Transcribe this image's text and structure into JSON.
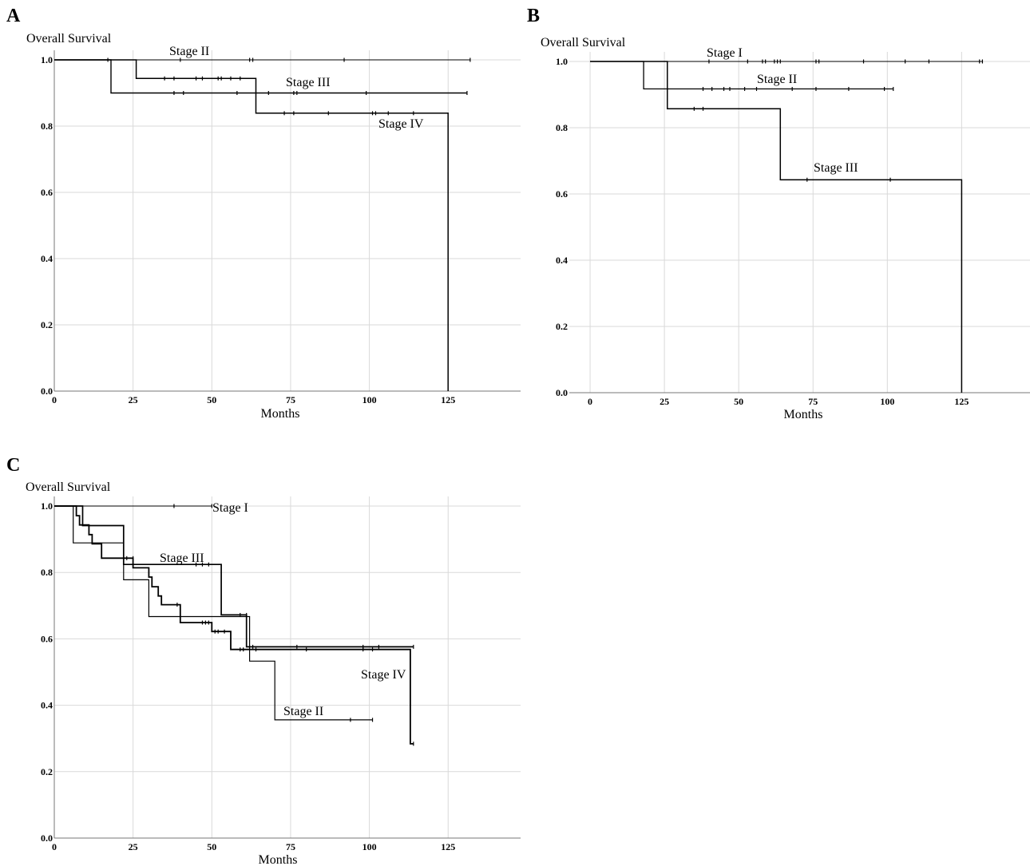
{
  "figure": {
    "background": "#ffffff",
    "grid_color": "#d9d9d9",
    "axis_color": "#777777",
    "line_color": "#000000"
  },
  "chart_data": [
    {
      "panel": "A",
      "type": "line",
      "subtype": "kaplan-meier",
      "ylabel": "Overall Survival",
      "xlabel": "Months",
      "xlim": [
        0,
        148
      ],
      "ylim": [
        0,
        1
      ],
      "x_ticks": [
        "0",
        "25",
        "50",
        "75",
        "100",
        "125"
      ],
      "y_ticks": [
        "0.0",
        "0.2",
        "0.4",
        "0.6",
        "0.8",
        "1.0"
      ],
      "grid": true,
      "series": [
        {
          "name": "Stage II",
          "steps": [
            [
              0,
              1.0
            ],
            [
              132,
              1.0
            ]
          ],
          "censored": [
            [
              40,
              1.0
            ],
            [
              62,
              1.0
            ],
            [
              63,
              1.0
            ],
            [
              92,
              1.0
            ],
            [
              132,
              1.0
            ]
          ]
        },
        {
          "name": "Stage III",
          "steps": [
            [
              0,
              1.0
            ],
            [
              18,
              0.9
            ],
            [
              131,
              0.9
            ]
          ],
          "censored": [
            [
              17,
              1.0
            ],
            [
              38,
              0.9
            ],
            [
              41,
              0.9
            ],
            [
              58,
              0.9
            ],
            [
              68,
              0.9
            ],
            [
              76,
              0.9
            ],
            [
              77,
              0.9
            ],
            [
              99,
              0.9
            ],
            [
              131,
              0.9
            ]
          ]
        },
        {
          "name": "Stage IV",
          "steps": [
            [
              0,
              1.0
            ],
            [
              26,
              0.944
            ],
            [
              64,
              0.839
            ],
            [
              125,
              0.0
            ]
          ],
          "censored": [
            [
              35,
              0.944
            ],
            [
              38,
              0.944
            ],
            [
              45,
              0.944
            ],
            [
              47,
              0.944
            ],
            [
              52,
              0.944
            ],
            [
              53,
              0.944
            ],
            [
              56,
              0.944
            ],
            [
              59,
              0.944
            ],
            [
              73,
              0.839
            ],
            [
              76,
              0.839
            ],
            [
              87,
              0.839
            ],
            [
              101,
              0.839
            ],
            [
              102,
              0.839
            ],
            [
              106,
              0.839
            ],
            [
              114,
              0.839
            ]
          ]
        }
      ],
      "labels": [
        "Stage II",
        "Stage III",
        "Stage IV"
      ]
    },
    {
      "panel": "B",
      "type": "line",
      "subtype": "kaplan-meier",
      "ylabel": "Overall Survival",
      "xlabel": "Months",
      "xlim": [
        -7,
        148
      ],
      "ylim": [
        0,
        1
      ],
      "x_ticks": [
        "0",
        "25",
        "50",
        "75",
        "100",
        "125"
      ],
      "y_ticks": [
        "0.0",
        "0.2",
        "0.4",
        "0.6",
        "0.8",
        "1.0"
      ],
      "grid": true,
      "series": [
        {
          "name": "Stage I",
          "steps": [
            [
              0,
              1.0
            ],
            [
              132,
              1.0
            ]
          ],
          "censored": [
            [
              40,
              1.0
            ],
            [
              53,
              1.0
            ],
            [
              58,
              1.0
            ],
            [
              59,
              1.0
            ],
            [
              62,
              1.0
            ],
            [
              63,
              1.0
            ],
            [
              64,
              1.0
            ],
            [
              76,
              1.0
            ],
            [
              77,
              1.0
            ],
            [
              92,
              1.0
            ],
            [
              106,
              1.0
            ],
            [
              114,
              1.0
            ],
            [
              131,
              1.0
            ],
            [
              132,
              1.0
            ]
          ]
        },
        {
          "name": "Stage II",
          "steps": [
            [
              0,
              1.0
            ],
            [
              18,
              0.917
            ],
            [
              102,
              0.917
            ]
          ],
          "censored": [
            [
              38,
              0.917
            ],
            [
              41,
              0.917
            ],
            [
              45,
              0.917
            ],
            [
              47,
              0.917
            ],
            [
              52,
              0.917
            ],
            [
              56,
              0.917
            ],
            [
              68,
              0.917
            ],
            [
              76,
              0.917
            ],
            [
              87,
              0.917
            ],
            [
              99,
              0.917
            ],
            [
              102,
              0.917
            ]
          ]
        },
        {
          "name": "Stage III",
          "steps": [
            [
              0,
              1.0
            ],
            [
              26,
              0.857
            ],
            [
              64,
              0.643
            ],
            [
              125,
              0.0
            ]
          ],
          "censored": [
            [
              35,
              0.857
            ],
            [
              38,
              0.857
            ],
            [
              73,
              0.643
            ],
            [
              101,
              0.643
            ]
          ]
        }
      ],
      "labels": [
        "Stage I",
        "Stage II",
        "Stage III"
      ]
    },
    {
      "panel": "C",
      "type": "line",
      "subtype": "kaplan-meier",
      "ylabel": "Overall Survival",
      "xlabel": "Months",
      "xlim": [
        0,
        148
      ],
      "ylim": [
        0,
        1
      ],
      "x_ticks": [
        "0",
        "25",
        "50",
        "75",
        "100",
        "125"
      ],
      "y_ticks": [
        "0.0",
        "0.2",
        "0.4",
        "0.6",
        "0.8",
        "1.0"
      ],
      "grid": true,
      "series": [
        {
          "name": "Stage I",
          "steps": [
            [
              0,
              1.0
            ],
            [
              50,
              1.0
            ]
          ],
          "censored": [
            [
              38,
              1.0
            ],
            [
              50,
              1.0
            ]
          ]
        },
        {
          "name": "Stage II",
          "steps": [
            [
              0,
              1.0
            ],
            [
              6,
              0.889
            ],
            [
              22,
              0.778
            ],
            [
              30,
              0.667
            ],
            [
              62,
              0.533
            ],
            [
              70,
              0.356
            ],
            [
              101,
              0.356
            ]
          ],
          "censored": [
            [
              94,
              0.356
            ],
            [
              101,
              0.356
            ]
          ]
        },
        {
          "name": "Stage III",
          "steps": [
            [
              0,
              1.0
            ],
            [
              9,
              0.941
            ],
            [
              22,
              0.824
            ],
            [
              53,
              0.672
            ],
            [
              61,
              0.576
            ],
            [
              114,
              0.576
            ]
          ],
          "censored": [
            [
              45,
              0.824
            ],
            [
              47,
              0.824
            ],
            [
              49,
              0.824
            ],
            [
              59,
              0.672
            ],
            [
              61,
              0.672
            ],
            [
              63,
              0.576
            ],
            [
              77,
              0.576
            ],
            [
              98,
              0.576
            ],
            [
              103,
              0.576
            ],
            [
              114,
              0.576
            ]
          ]
        },
        {
          "name": "Stage IV",
          "steps": [
            [
              0,
              1.0
            ],
            [
              7,
              0.971
            ],
            [
              8,
              0.943
            ],
            [
              11,
              0.914
            ],
            [
              12,
              0.886
            ],
            [
              15,
              0.843
            ],
            [
              25,
              0.814
            ],
            [
              30,
              0.786
            ],
            [
              31,
              0.757
            ],
            [
              33,
              0.729
            ],
            [
              34,
              0.703
            ],
            [
              40,
              0.649
            ],
            [
              50,
              0.622
            ],
            [
              56,
              0.568
            ],
            [
              113,
              0.284
            ],
            [
              114,
              0.284
            ]
          ],
          "censored": [
            [
              23,
              0.843
            ],
            [
              25,
              0.843
            ],
            [
              39,
              0.703
            ],
            [
              47,
              0.649
            ],
            [
              48,
              0.649
            ],
            [
              49,
              0.649
            ],
            [
              51,
              0.622
            ],
            [
              52,
              0.622
            ],
            [
              54,
              0.622
            ],
            [
              59,
              0.568
            ],
            [
              60,
              0.568
            ],
            [
              64,
              0.568
            ],
            [
              80,
              0.568
            ],
            [
              98,
              0.568
            ],
            [
              101,
              0.568
            ],
            [
              114,
              0.284
            ]
          ]
        }
      ],
      "labels": [
        "Stage I",
        "Stage III",
        "Stage IV",
        "Stage II"
      ]
    }
  ]
}
